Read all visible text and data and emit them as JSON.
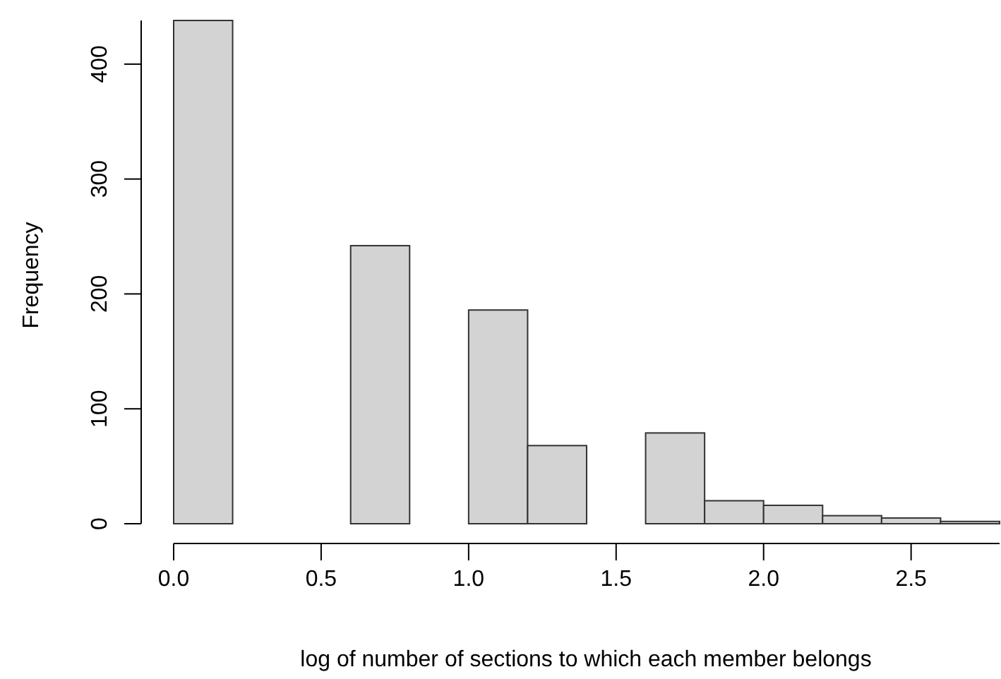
{
  "chart_data": {
    "type": "histogram",
    "xlabel": "log of number of sections to which each member belongs",
    "ylabel": "Frequency",
    "bins": [
      0,
      0.2,
      0.4,
      0.6,
      0.8,
      1.0,
      1.2,
      1.4,
      1.6,
      1.8,
      2.0,
      2.2,
      2.4,
      2.6,
      2.8
    ],
    "values": [
      438,
      0,
      0,
      242,
      0,
      186,
      68,
      0,
      79,
      20,
      16,
      7,
      5,
      2
    ],
    "color": "#d3d3d3",
    "xlim": [
      0,
      2.8
    ],
    "xticks": [
      {
        "value": 0,
        "label": "0.0"
      },
      0.5,
      {
        "value": 1,
        "label": "1.0"
      },
      1.5,
      {
        "value": 2,
        "label": "2.0"
      },
      2.5
    ],
    "ylim": [
      0,
      438
    ],
    "yticks": [
      0,
      100,
      200,
      300,
      400
    ],
    "grid": false
  }
}
